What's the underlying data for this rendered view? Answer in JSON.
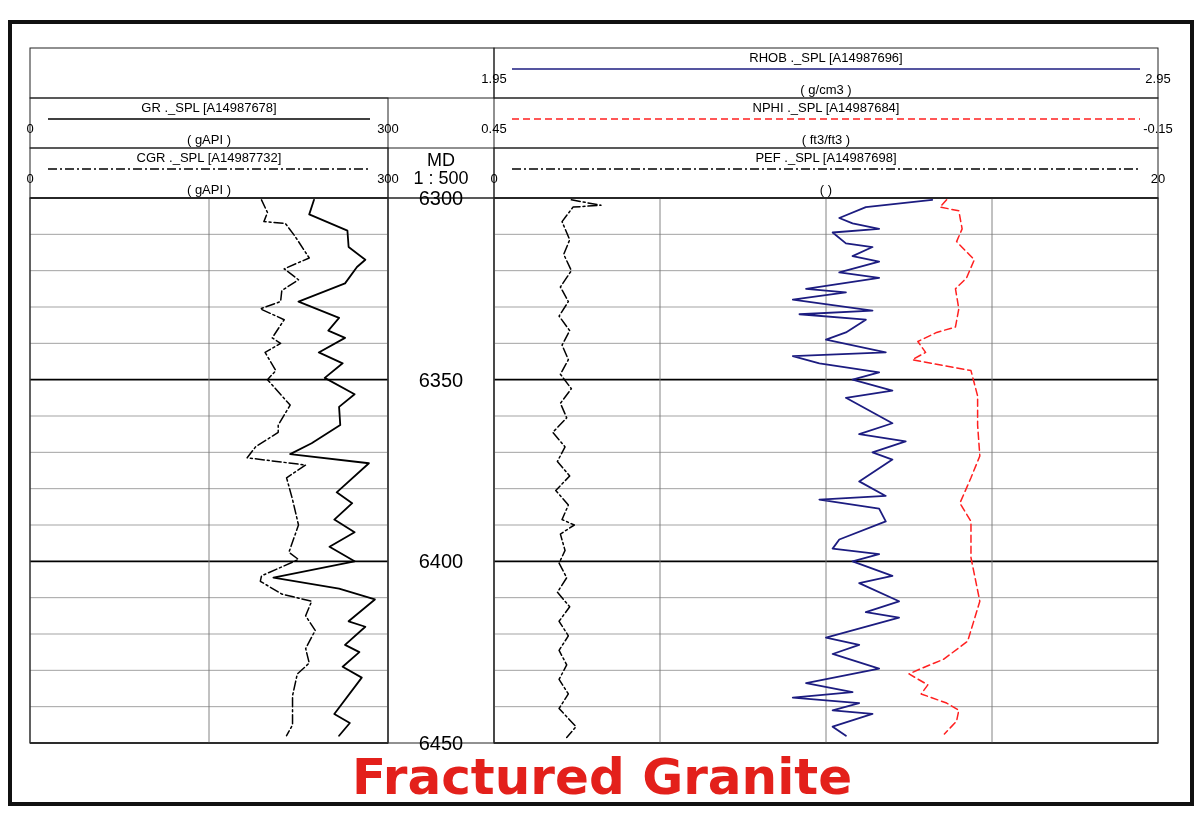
{
  "chart_data": [
    {
      "type": "line",
      "xlim": [
        0,
        300
      ],
      "xticks": [
        0,
        {
          "value": 150,
          "label": null
        },
        300
      ],
      "xlabel": "( gAPI )",
      "ylim": [
        6450,
        6300
      ],
      "yticks": [
        6300,
        {
          "value": 6310,
          "label": null
        },
        {
          "value": 6320,
          "label": null
        },
        {
          "value": 6330,
          "label": null
        },
        {
          "value": 6340,
          "label": null
        },
        6350,
        {
          "value": 6360,
          "label": null
        },
        {
          "value": 6370,
          "label": null
        },
        {
          "value": 6380,
          "label": null
        },
        {
          "value": 6390,
          "label": null
        },
        6400,
        {
          "value": 6410,
          "label": null
        },
        {
          "value": 6420,
          "label": null
        },
        {
          "value": 6430,
          "label": null
        },
        {
          "value": 6440,
          "label": null
        },
        6450
      ],
      "grid": true,
      "legend": "top",
      "annotations": [
        "MD",
        "1 : 500",
        "Fractured Granite"
      ],
      "series": [
        {
          "name": "GR ._SPL [A14987678]",
          "color": "#000000",
          "line_style": "solid",
          "x": [
            238,
            234,
            266,
            267,
            281,
            274,
            264,
            225,
            259,
            250,
            264,
            242,
            262,
            247,
            272,
            259,
            260,
            236,
            218,
            284,
            257,
            270,
            255,
            272,
            251,
            272,
            204,
            259,
            289,
            267,
            281,
            264,
            276,
            262,
            278,
            255,
            268,
            259
          ],
          "values": [
            6300.5,
            6304.5,
            6309,
            6313.5,
            6317,
            6319,
            6323.5,
            6328.5,
            6333,
            6336.5,
            6338.5,
            6342.5,
            6345.5,
            6349.5,
            6354,
            6357.5,
            6362.5,
            6367.5,
            6370.5,
            6373,
            6381,
            6384,
            6388.5,
            6392,
            6396,
            6400,
            6404.5,
            6407.5,
            6410.5,
            6416.5,
            6418,
            6423,
            6425,
            6429,
            6432,
            6442,
            6444.5,
            6448
          ]
        }
      ]
    },
    {
      "type": "line",
      "xlim": [
        0,
        300
      ],
      "xticks": [
        0,
        300
      ],
      "xlabel": "( gAPI )",
      "ylim": [
        6450,
        6300
      ],
      "tick_labels": "x",
      "legend": "top",
      "series": [
        {
          "name": "CGR ._SPL [A14987732]",
          "color": "#000000",
          "line_style": "dashdot",
          "x": [
            194,
            199,
            196,
            214,
            222,
            234,
            213,
            225,
            211,
            210,
            193,
            213,
            203,
            210,
            197,
            206,
            199,
            218,
            208,
            208,
            189,
            182,
            231,
            215,
            220,
            225,
            217,
            225,
            194,
            193,
            211,
            236,
            231,
            239,
            231,
            234,
            224,
            220,
            220,
            215
          ],
          "values": [
            6300.5,
            6304,
            6306.5,
            6307,
            6310.5,
            6316.5,
            6319.5,
            6322.5,
            6325.5,
            6328.5,
            6330.5,
            6333.5,
            6338.5,
            6340,
            6342.5,
            6347.5,
            6350,
            6357,
            6362.5,
            6364.5,
            6368.5,
            6371.5,
            6373.5,
            6377,
            6383,
            6390,
            6397.5,
            6399.5,
            6404,
            6405.5,
            6409,
            6411,
            6415,
            6419,
            6424,
            6428,
            6431,
            6437,
            6445,
            6448
          ]
        }
      ]
    },
    {
      "type": "line",
      "xlim": [
        1.95,
        2.95
      ],
      "xticks": [
        1.95,
        {
          "value": 2.2,
          "label": null
        },
        {
          "value": 2.45,
          "label": null
        },
        {
          "value": 2.7,
          "label": null
        },
        2.95
      ],
      "xlabel": "( g/cm3 )",
      "ylim": [
        6450,
        6300
      ],
      "yticks": [
        6300,
        {
          "value": 6310,
          "label": null
        },
        {
          "value": 6320,
          "label": null
        },
        {
          "value": 6330,
          "label": null
        },
        {
          "value": 6340,
          "label": null
        },
        6350,
        {
          "value": 6360,
          "label": null
        },
        {
          "value": 6370,
          "label": null
        },
        {
          "value": 6380,
          "label": null
        },
        {
          "value": 6390,
          "label": null
        },
        6400,
        {
          "value": 6410,
          "label": null
        },
        {
          "value": 6420,
          "label": null
        },
        {
          "value": 6430,
          "label": null
        },
        {
          "value": 6440,
          "label": null
        },
        6450
      ],
      "tick_labels": "x",
      "grid": true,
      "legend": "top",
      "series": [
        {
          "name": "RHOB ._SPL [A14987696]",
          "color": "#1c1c80",
          "line_style": "solid",
          "x": [
            2.61,
            2.51,
            2.47,
            2.49,
            2.53,
            2.46,
            2.48,
            2.52,
            2.49,
            2.53,
            2.47,
            2.53,
            2.42,
            2.48,
            2.4,
            2.52,
            2.41,
            2.51,
            2.48,
            2.45,
            2.54,
            2.4,
            2.44,
            2.53,
            2.49,
            2.55,
            2.48,
            2.55,
            2.5,
            2.57,
            2.52,
            2.55,
            2.5,
            2.54,
            2.44,
            2.53,
            2.54,
            2.47,
            2.46,
            2.53,
            2.49,
            2.55,
            2.5,
            2.56,
            2.51,
            2.56,
            2.45,
            2.5,
            2.46,
            2.53,
            2.42,
            2.49,
            2.4,
            2.5,
            2.46,
            2.52,
            2.46,
            2.48
          ],
          "values": [
            6300.5,
            6302.5,
            6305.5,
            6307,
            6308.5,
            6309.5,
            6312.5,
            6313.5,
            6316,
            6317.5,
            6320.5,
            6322,
            6325,
            6326,
            6328,
            6331,
            6332,
            6333.5,
            6337,
            6339,
            6342.5,
            6343.5,
            6345.5,
            6348,
            6350,
            6353,
            6355,
            6362,
            6365,
            6367,
            6370,
            6372,
            6378,
            6382,
            6383,
            6385.5,
            6389,
            6394,
            6396.5,
            6398,
            6400,
            6404,
            6406,
            6411,
            6414,
            6415.5,
            6421,
            6423,
            6425.5,
            6429.5,
            6433.5,
            6436,
            6437.5,
            6439,
            6441,
            6442,
            6445.5,
            6448
          ]
        }
      ]
    },
    {
      "type": "line",
      "xlim": [
        0.45,
        -0.15
      ],
      "xticks": [
        0.45,
        -0.15
      ],
      "xlabel": "( ft3/ft3 )",
      "ylim": [
        6450,
        6300
      ],
      "tick_labels": "x",
      "legend": "top",
      "series": [
        {
          "name": "NPHI ._SPL [A14987684]",
          "color": "#ff2020",
          "line_style": "dashed",
          "x": [
            0.041,
            0.047,
            0.03,
            0.027,
            0.032,
            0.016,
            0.023,
            0.033,
            0.03,
            0.033,
            0.05,
            0.067,
            0.06,
            0.072,
            0.055,
            0.019,
            0.013,
            0.013,
            0.011,
            0.019,
            0.029,
            0.019,
            0.019,
            0.011,
            0.022,
            0.044,
            0.064,
            0.075,
            0.058,
            0.064,
            0.041,
            0.03,
            0.032,
            0.043
          ],
          "values": [
            6300.5,
            6302.5,
            6303.5,
            6308.5,
            6312,
            6317,
            6322,
            6325,
            6330.5,
            6335.5,
            6337,
            6339.5,
            6342.5,
            6344.5,
            6345.5,
            6347.5,
            6354.5,
            6362.5,
            6371,
            6377,
            6384,
            6389,
            6399,
            6411,
            6422,
            6427,
            6429.5,
            6431,
            6434,
            6436.5,
            6439,
            6441,
            6444,
            6447.5
          ]
        }
      ]
    },
    {
      "type": "line",
      "xlim": [
        0,
        20
      ],
      "xticks": [
        0,
        20
      ],
      "xlabel": "(  )",
      "ylim": [
        6450,
        6300
      ],
      "tick_labels": "x",
      "legend": "top",
      "series": [
        {
          "name": "PEF ._SPL [A14987698]",
          "color": "#000000",
          "line_style": "dashdot",
          "x": [
            2.33,
            3.22,
            2.38,
            2.05,
            2.28,
            2.1,
            2.33,
            2.0,
            2.24,
            1.96,
            2.28,
            2.05,
            2.24,
            2.0,
            2.33,
            2.0,
            2.19,
            1.77,
            2.14,
            1.91,
            2.28,
            1.86,
            2.24,
            2.05,
            2.42,
            2.0,
            2.14,
            1.96,
            2.19,
            1.91,
            2.28,
            1.96,
            2.24,
            1.96,
            2.19,
            1.96,
            2.24,
            1.96,
            2.47,
            2.19
          ],
          "values": [
            6300.5,
            6302,
            6302.5,
            6306.5,
            6311.5,
            6315.5,
            6320,
            6324.5,
            6328.5,
            6332.5,
            6336.5,
            6340.5,
            6344.5,
            6348.5,
            6352.5,
            6356.5,
            6360.5,
            6364.5,
            6368.5,
            6372.5,
            6376.5,
            6380.5,
            6384.5,
            6388.5,
            6390,
            6392.5,
            6397,
            6400.5,
            6404.5,
            6408.5,
            6412.5,
            6416.5,
            6420.5,
            6424.5,
            6428.5,
            6432.5,
            6436.5,
            6440.5,
            6445.5,
            6448.5
          ]
        }
      ]
    }
  ]
}
